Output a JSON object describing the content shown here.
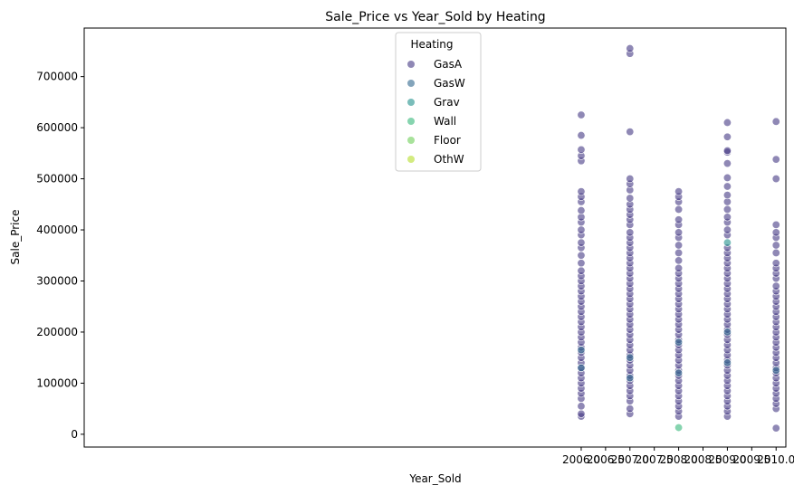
{
  "chart_data": {
    "type": "scatter",
    "title": "Sale_Price vs Year_Sold by Heating",
    "xlabel": "Year_Sold",
    "ylabel": "Sale_Price",
    "xlim": [
      1995.8,
      2010.2
    ],
    "ylim": [
      -25000,
      795000
    ],
    "x_ticks": [
      "2006.0",
      "2006.5",
      "2007.0",
      "2007.5",
      "2008.0",
      "2008.5",
      "2009.0",
      "2009.5",
      "2010.0"
    ],
    "x_tick_values": [
      2006.0,
      2006.5,
      2007.0,
      2007.5,
      2008.0,
      2008.5,
      2009.0,
      2009.5,
      2010.0
    ],
    "y_ticks": [
      "0",
      "100000",
      "200000",
      "300000",
      "400000",
      "500000",
      "600000",
      "700000"
    ],
    "y_tick_values": [
      0,
      100000,
      200000,
      300000,
      400000,
      500000,
      600000,
      700000
    ],
    "grid": false,
    "legend": {
      "title": "Heating",
      "placement": "top-center"
    },
    "series": [
      {
        "name": "GasA",
        "color": "#443983",
        "points": [
          [
            2006,
            35000
          ],
          [
            2006,
            40000
          ],
          [
            2006,
            55000
          ],
          [
            2006,
            70000
          ],
          [
            2006,
            80000
          ],
          [
            2006,
            90000
          ],
          [
            2006,
            100000
          ],
          [
            2006,
            110000
          ],
          [
            2006,
            120000
          ],
          [
            2006,
            130000
          ],
          [
            2006,
            140000
          ],
          [
            2006,
            150000
          ],
          [
            2006,
            160000
          ],
          [
            2006,
            170000
          ],
          [
            2006,
            180000
          ],
          [
            2006,
            190000
          ],
          [
            2006,
            200000
          ],
          [
            2006,
            210000
          ],
          [
            2006,
            220000
          ],
          [
            2006,
            230000
          ],
          [
            2006,
            240000
          ],
          [
            2006,
            250000
          ],
          [
            2006,
            260000
          ],
          [
            2006,
            270000
          ],
          [
            2006,
            280000
          ],
          [
            2006,
            290000
          ],
          [
            2006,
            300000
          ],
          [
            2006,
            310000
          ],
          [
            2006,
            320000
          ],
          [
            2006,
            335000
          ],
          [
            2006,
            350000
          ],
          [
            2006,
            365000
          ],
          [
            2006,
            375000
          ],
          [
            2006,
            390000
          ],
          [
            2006,
            400000
          ],
          [
            2006,
            415000
          ],
          [
            2006,
            425000
          ],
          [
            2006,
            438000
          ],
          [
            2006,
            455000
          ],
          [
            2006,
            465000
          ],
          [
            2006,
            475000
          ],
          [
            2006,
            535000
          ],
          [
            2006,
            545000
          ],
          [
            2006,
            557000
          ],
          [
            2006,
            585000
          ],
          [
            2006,
            625000
          ],
          [
            2007,
            40000
          ],
          [
            2007,
            50000
          ],
          [
            2007,
            65000
          ],
          [
            2007,
            75000
          ],
          [
            2007,
            85000
          ],
          [
            2007,
            95000
          ],
          [
            2007,
            105000
          ],
          [
            2007,
            115000
          ],
          [
            2007,
            125000
          ],
          [
            2007,
            135000
          ],
          [
            2007,
            145000
          ],
          [
            2007,
            155000
          ],
          [
            2007,
            165000
          ],
          [
            2007,
            175000
          ],
          [
            2007,
            185000
          ],
          [
            2007,
            195000
          ],
          [
            2007,
            205000
          ],
          [
            2007,
            215000
          ],
          [
            2007,
            225000
          ],
          [
            2007,
            235000
          ],
          [
            2007,
            245000
          ],
          [
            2007,
            255000
          ],
          [
            2007,
            265000
          ],
          [
            2007,
            275000
          ],
          [
            2007,
            285000
          ],
          [
            2007,
            295000
          ],
          [
            2007,
            305000
          ],
          [
            2007,
            315000
          ],
          [
            2007,
            325000
          ],
          [
            2007,
            335000
          ],
          [
            2007,
            345000
          ],
          [
            2007,
            355000
          ],
          [
            2007,
            365000
          ],
          [
            2007,
            375000
          ],
          [
            2007,
            385000
          ],
          [
            2007,
            395000
          ],
          [
            2007,
            410000
          ],
          [
            2007,
            420000
          ],
          [
            2007,
            430000
          ],
          [
            2007,
            440000
          ],
          [
            2007,
            450000
          ],
          [
            2007,
            462000
          ],
          [
            2007,
            478000
          ],
          [
            2007,
            490000
          ],
          [
            2007,
            500000
          ],
          [
            2007,
            592000
          ],
          [
            2007,
            745000
          ],
          [
            2007,
            755000
          ],
          [
            2008,
            35000
          ],
          [
            2008,
            45000
          ],
          [
            2008,
            55000
          ],
          [
            2008,
            65000
          ],
          [
            2008,
            75000
          ],
          [
            2008,
            85000
          ],
          [
            2008,
            95000
          ],
          [
            2008,
            105000
          ],
          [
            2008,
            115000
          ],
          [
            2008,
            125000
          ],
          [
            2008,
            135000
          ],
          [
            2008,
            145000
          ],
          [
            2008,
            155000
          ],
          [
            2008,
            165000
          ],
          [
            2008,
            175000
          ],
          [
            2008,
            185000
          ],
          [
            2008,
            195000
          ],
          [
            2008,
            205000
          ],
          [
            2008,
            215000
          ],
          [
            2008,
            225000
          ],
          [
            2008,
            235000
          ],
          [
            2008,
            245000
          ],
          [
            2008,
            255000
          ],
          [
            2008,
            265000
          ],
          [
            2008,
            275000
          ],
          [
            2008,
            285000
          ],
          [
            2008,
            295000
          ],
          [
            2008,
            305000
          ],
          [
            2008,
            315000
          ],
          [
            2008,
            325000
          ],
          [
            2008,
            340000
          ],
          [
            2008,
            355000
          ],
          [
            2008,
            370000
          ],
          [
            2008,
            385000
          ],
          [
            2008,
            395000
          ],
          [
            2008,
            410000
          ],
          [
            2008,
            420000
          ],
          [
            2008,
            440000
          ],
          [
            2008,
            455000
          ],
          [
            2008,
            465000
          ],
          [
            2008,
            475000
          ],
          [
            2009,
            35000
          ],
          [
            2009,
            45000
          ],
          [
            2009,
            55000
          ],
          [
            2009,
            65000
          ],
          [
            2009,
            75000
          ],
          [
            2009,
            85000
          ],
          [
            2009,
            95000
          ],
          [
            2009,
            105000
          ],
          [
            2009,
            115000
          ],
          [
            2009,
            125000
          ],
          [
            2009,
            135000
          ],
          [
            2009,
            145000
          ],
          [
            2009,
            155000
          ],
          [
            2009,
            165000
          ],
          [
            2009,
            175000
          ],
          [
            2009,
            185000
          ],
          [
            2009,
            195000
          ],
          [
            2009,
            205000
          ],
          [
            2009,
            215000
          ],
          [
            2009,
            225000
          ],
          [
            2009,
            235000
          ],
          [
            2009,
            245000
          ],
          [
            2009,
            255000
          ],
          [
            2009,
            265000
          ],
          [
            2009,
            275000
          ],
          [
            2009,
            285000
          ],
          [
            2009,
            295000
          ],
          [
            2009,
            305000
          ],
          [
            2009,
            315000
          ],
          [
            2009,
            325000
          ],
          [
            2009,
            335000
          ],
          [
            2009,
            345000
          ],
          [
            2009,
            355000
          ],
          [
            2009,
            365000
          ],
          [
            2009,
            390000
          ],
          [
            2009,
            400000
          ],
          [
            2009,
            415000
          ],
          [
            2009,
            425000
          ],
          [
            2009,
            440000
          ],
          [
            2009,
            455000
          ],
          [
            2009,
            468000
          ],
          [
            2009,
            485000
          ],
          [
            2009,
            502000
          ],
          [
            2009,
            530000
          ],
          [
            2009,
            552000
          ],
          [
            2009,
            555000
          ],
          [
            2009,
            582000
          ],
          [
            2009,
            610000
          ],
          [
            2010,
            12000
          ],
          [
            2010,
            50000
          ],
          [
            2010,
            60000
          ],
          [
            2010,
            70000
          ],
          [
            2010,
            80000
          ],
          [
            2010,
            90000
          ],
          [
            2010,
            100000
          ],
          [
            2010,
            110000
          ],
          [
            2010,
            120000
          ],
          [
            2010,
            130000
          ],
          [
            2010,
            140000
          ],
          [
            2010,
            150000
          ],
          [
            2010,
            160000
          ],
          [
            2010,
            170000
          ],
          [
            2010,
            180000
          ],
          [
            2010,
            190000
          ],
          [
            2010,
            200000
          ],
          [
            2010,
            210000
          ],
          [
            2010,
            220000
          ],
          [
            2010,
            230000
          ],
          [
            2010,
            240000
          ],
          [
            2010,
            250000
          ],
          [
            2010,
            260000
          ],
          [
            2010,
            270000
          ],
          [
            2010,
            280000
          ],
          [
            2010,
            290000
          ],
          [
            2010,
            305000
          ],
          [
            2010,
            315000
          ],
          [
            2010,
            325000
          ],
          [
            2010,
            335000
          ],
          [
            2010,
            355000
          ],
          [
            2010,
            370000
          ],
          [
            2010,
            385000
          ],
          [
            2010,
            395000
          ],
          [
            2010,
            410000
          ],
          [
            2010,
            500000
          ],
          [
            2010,
            538000
          ],
          [
            2010,
            612000
          ]
        ]
      },
      {
        "name": "GasW",
        "color": "#31688e",
        "points": [
          [
            2006,
            130000
          ],
          [
            2006,
            165000
          ],
          [
            2007,
            110000
          ],
          [
            2007,
            150000
          ],
          [
            2008,
            120000
          ],
          [
            2008,
            180000
          ],
          [
            2009,
            140000
          ],
          [
            2009,
            200000
          ],
          [
            2010,
            125000
          ]
        ]
      },
      {
        "name": "Grav",
        "color": "#21918c",
        "points": [
          [
            2009,
            375000
          ]
        ]
      },
      {
        "name": "Wall",
        "color": "#35b779",
        "points": [
          [
            2008,
            13000
          ]
        ]
      },
      {
        "name": "Floor",
        "color": "#6ece58",
        "points": []
      },
      {
        "name": "OthW",
        "color": "#b5de2b",
        "points": []
      }
    ]
  }
}
